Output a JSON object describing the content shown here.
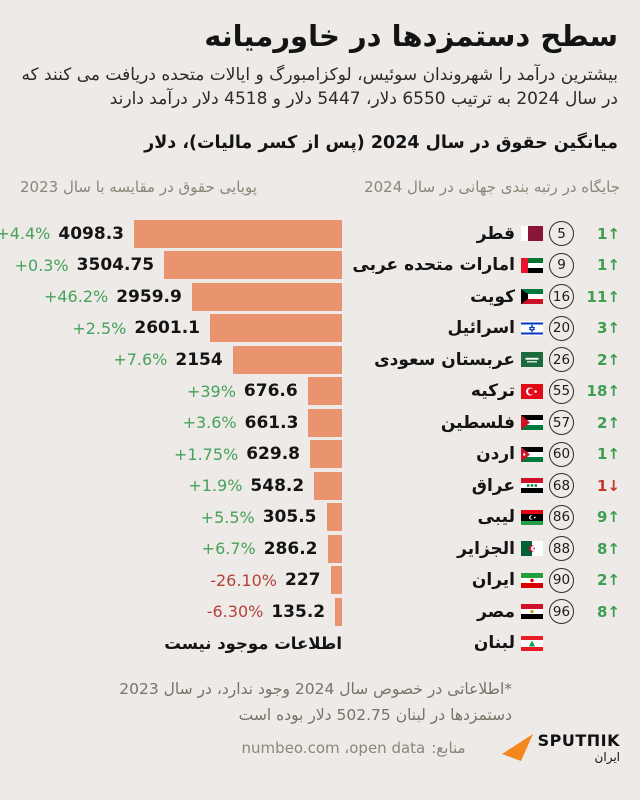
{
  "header": {
    "title": "سطح دستمزدها در خاورمیانه",
    "subtitle": "بیشترین درآمد را شهروندان سوئیس، لوکزامبورگ و ایالات متحده دریافت می کنند که در سال 2024 به ترتیب 6550 دلار، 5447 دلار و 4518 دلار درآمد دارند",
    "section_title": "میانگین حقوق در سال 2024 (پس از کسر مالیات)، دلار"
  },
  "columns": {
    "left": "پویایی حقوق در مقایسه با سال 2023",
    "right": "جایگاه در رتبه بندی جهانی در سال 2024"
  },
  "chart_data": {
    "type": "bar",
    "orientation": "horizontal-rtl",
    "title": "میانگین حقوق در سال 2024 (پس از کسر مالیات)، دلار",
    "value_unit": "دلار",
    "max_value": 4098.3,
    "bar_color": "#e9946e",
    "up_color": "#3f9e51",
    "down_color": "#c0392e",
    "rows": [
      {
        "country": "قطر",
        "flag": "qatar",
        "rank": "5",
        "rank_change": "1",
        "rank_change_dir": "up",
        "value": 4098.3,
        "value_label": "4098.3",
        "pct_label": "+4.4%",
        "pct_dir": "up"
      },
      {
        "country": "امارات متحده عربی",
        "flag": "uae",
        "rank": "9",
        "rank_change": "1",
        "rank_change_dir": "up",
        "value": 3504.75,
        "value_label": "3504.75",
        "pct_label": "+0.3%",
        "pct_dir": "up"
      },
      {
        "country": "کویت",
        "flag": "kuwait",
        "rank": "16",
        "rank_change": "11",
        "rank_change_dir": "up",
        "value": 2959.9,
        "value_label": "2959.9",
        "pct_label": "+46.2%",
        "pct_dir": "up"
      },
      {
        "country": "اسرائیل",
        "flag": "israel",
        "rank": "20",
        "rank_change": "3",
        "rank_change_dir": "up",
        "value": 2601.1,
        "value_label": "2601.1",
        "pct_label": "+2.5%",
        "pct_dir": "up"
      },
      {
        "country": "عربستان سعودی",
        "flag": "saudi",
        "rank": "26",
        "rank_change": "2",
        "rank_change_dir": "up",
        "value": 2154,
        "value_label": "2154",
        "pct_label": "+7.6%",
        "pct_dir": "up"
      },
      {
        "country": "ترکیه",
        "flag": "turkey",
        "rank": "55",
        "rank_change": "18",
        "rank_change_dir": "up",
        "value": 676.6,
        "value_label": "676.6",
        "pct_label": "+39%",
        "pct_dir": "up"
      },
      {
        "country": "فلسطین",
        "flag": "palestine",
        "rank": "57",
        "rank_change": "2",
        "rank_change_dir": "up",
        "value": 661.3,
        "value_label": "661.3",
        "pct_label": "+3.6%",
        "pct_dir": "up"
      },
      {
        "country": "اردن",
        "flag": "jordan",
        "rank": "60",
        "rank_change": "1",
        "rank_change_dir": "up",
        "value": 629.8,
        "value_label": "629.8",
        "pct_label": "+1.75%",
        "pct_dir": "up"
      },
      {
        "country": "عراق",
        "flag": "iraq",
        "rank": "68",
        "rank_change": "1",
        "rank_change_dir": "down",
        "value": 548.2,
        "value_label": "548.2",
        "pct_label": "+1.9%",
        "pct_dir": "up"
      },
      {
        "country": "لیبی",
        "flag": "libya",
        "rank": "86",
        "rank_change": "9",
        "rank_change_dir": "up",
        "value": 305.5,
        "value_label": "305.5",
        "pct_label": "+5.5%",
        "pct_dir": "up"
      },
      {
        "country": "الجزایر",
        "flag": "algeria",
        "rank": "88",
        "rank_change": "8",
        "rank_change_dir": "up",
        "value": 286.2,
        "value_label": "286.2",
        "pct_label": "+6.7%",
        "pct_dir": "up"
      },
      {
        "country": "ایران",
        "flag": "iran",
        "rank": "90",
        "rank_change": "2",
        "rank_change_dir": "up",
        "value": 227,
        "value_label": "227",
        "pct_label": "-26.10%",
        "pct_dir": "down"
      },
      {
        "country": "مصر",
        "flag": "egypt",
        "rank": "96",
        "rank_change": "8",
        "rank_change_dir": "up",
        "value": 135.2,
        "value_label": "135.2",
        "pct_label": "-6.30%",
        "pct_dir": "down"
      },
      {
        "country": "لبنان",
        "flag": "lebanon",
        "rank": null,
        "rank_change": null,
        "rank_change_dir": null,
        "value": null,
        "value_label": null,
        "pct_label": null,
        "no_data": true,
        "no_data_label": "اطلاعات موجود نیست"
      }
    ]
  },
  "icons": {
    "arrow_up": "↑",
    "arrow_down": "↓"
  },
  "footnote": {
    "line1": "*اطلاعاتی در خصوص سال 2024 وجود ندارد، در سال 2023",
    "line2": "دستمزدها در لبنان 502.75 دلار بوده است"
  },
  "source": {
    "label": "منابع:",
    "value": "numbeo.com ،open data",
    "brand": "SPUTΠIK",
    "brand_sub": "ایران",
    "brand_color": "#f5871f"
  },
  "colors": {
    "background": "#edeae7",
    "bar": "#e9946e",
    "text": "#141414",
    "muted": "#8d8578",
    "green": "#3f9e51",
    "red": "#c0392e"
  }
}
